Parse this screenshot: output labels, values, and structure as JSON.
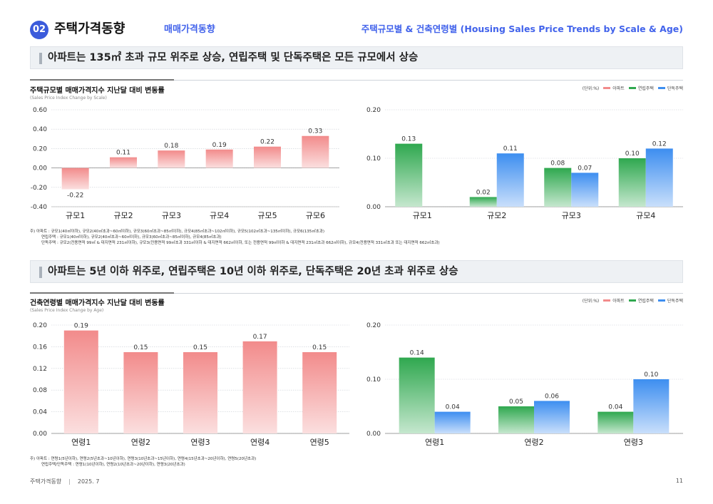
{
  "header": {
    "badge": "02",
    "title": "주택가격동향",
    "subtitle": "매매가격동향",
    "right_title": "주택규모별 & 건축연령별 (Housing Sales Price Trends by Scale & Age)"
  },
  "section1": {
    "headline": "아파트는  135㎡ 초과 규모 위주로 상승,  연립주택 및 단독주택은 모든 규모에서 상승",
    "chart_title": "주택규모별 매매가격지수 지난달 대비 변동률",
    "chart_subtitle": "(Sales Price Index Change by Scale)",
    "legend": {
      "unit": "(단위:%)",
      "items": [
        {
          "label": "아파트",
          "color": "#f28b8b"
        },
        {
          "label": "연립주택",
          "color": "#2fa84f"
        },
        {
          "label": "단독주택",
          "color": "#3d8ef0"
        }
      ]
    },
    "notes": [
      "주) 아파트 : 규모1(40㎡이하), 규모2(40㎡초과~60㎡이하), 규모3(60㎡초과~85㎡이하), 규모4(85㎡초과~102㎡이하), 규모5(102㎡초과~135㎡이하), 규모6(135㎡초과)",
      "연립주택 : 규모1(40㎡이하), 규모2(40㎡초과~60㎡이하), 규모3(60㎡초과~85㎡이하), 규모4(85㎡초과)",
      "단독주택 : 규모2(전용면적 99㎡ & 대지면적 231㎡이하), 규모3(전용면적 99㎡초과 331㎡이하 & 대지면적 662㎡이하, 또는 전용면적 99㎡이하 & 대지면적 231㎡초과 662㎡이하), 규모4(전용면적 331㎡초과 또는 대지면적 662㎡초과)"
    ]
  },
  "section2": {
    "headline": "아파트는 5년 이하 위주로, 연립주택은 10년 이하 위주로, 단독주택은 20년 초과 위주로 상승",
    "chart_title": "건축연령별 매매가격지수 지난달 대비 변동률",
    "chart_subtitle": "(Sales Price Index Change by Age)",
    "legend": {
      "unit": "(단위:%)",
      "items": [
        {
          "label": "아파트",
          "color": "#f28b8b"
        },
        {
          "label": "연립주택",
          "color": "#2fa84f"
        },
        {
          "label": "단독주택",
          "color": "#3d8ef0"
        }
      ]
    },
    "notes": [
      "주) 아파트 : 연령1(5년이하), 연령2(5년초과~10년이하), 연령3(10년초과~15년이하), 연령4(15년초과~20년이하), 연령5(20년초과)",
      "연립주택/단독주택 : 연령1(10년이하), 연령2(10년초과~20년이하), 연령3(20년초과)"
    ]
  },
  "chart_data": [
    {
      "type": "bar",
      "categories": [
        "규모1",
        "규모2",
        "규모3",
        "규모4",
        "규모5",
        "규모6"
      ],
      "series": [
        {
          "name": "아파트",
          "values": [
            -0.22,
            0.11,
            0.18,
            0.19,
            0.22,
            0.33
          ],
          "color": "#f28b8b"
        }
      ],
      "ylim": [
        -0.4,
        0.6
      ],
      "yticks": [
        "0.60",
        "0.40",
        "0.20",
        "0.00",
        "-0.20",
        "-0.40"
      ],
      "grid": true
    },
    {
      "type": "bar",
      "categories": [
        "규모1",
        "규모2",
        "규모3",
        "규모4"
      ],
      "series": [
        {
          "name": "연립주택",
          "values": [
            0.13,
            0.02,
            0.08,
            0.1
          ],
          "color": "#2fa84f"
        },
        {
          "name": "단독주택",
          "values": [
            null,
            0.11,
            0.07,
            0.12
          ],
          "color": "#3d8ef0"
        }
      ],
      "ylim": [
        0,
        0.2
      ],
      "yticks": [
        "0.20",
        "0.10",
        "0.00"
      ],
      "grid": true
    },
    {
      "type": "bar",
      "categories": [
        "연령1",
        "연령2",
        "연령3",
        "연령4",
        "연령5"
      ],
      "series": [
        {
          "name": "아파트",
          "values": [
            0.19,
            0.15,
            0.15,
            0.17,
            0.15
          ],
          "color": "#f28b8b"
        }
      ],
      "ylim": [
        0,
        0.2
      ],
      "yticks": [
        "0.20",
        "0.16",
        "0.12",
        "0.08",
        "0.04",
        "0.00"
      ],
      "grid": true
    },
    {
      "type": "bar",
      "categories": [
        "연령1",
        "연령2",
        "연령3"
      ],
      "series": [
        {
          "name": "연립주택",
          "values": [
            0.14,
            0.05,
            0.04
          ],
          "color": "#2fa84f"
        },
        {
          "name": "단독주택",
          "values": [
            0.04,
            0.06,
            0.1
          ],
          "color": "#3d8ef0"
        }
      ],
      "ylim": [
        0,
        0.2
      ],
      "yticks": [
        "0.20",
        "0.10",
        "0.00"
      ],
      "grid": true
    }
  ],
  "footer": {
    "left": "주택가격동향",
    "date": "2025. 7",
    "page": "11"
  }
}
